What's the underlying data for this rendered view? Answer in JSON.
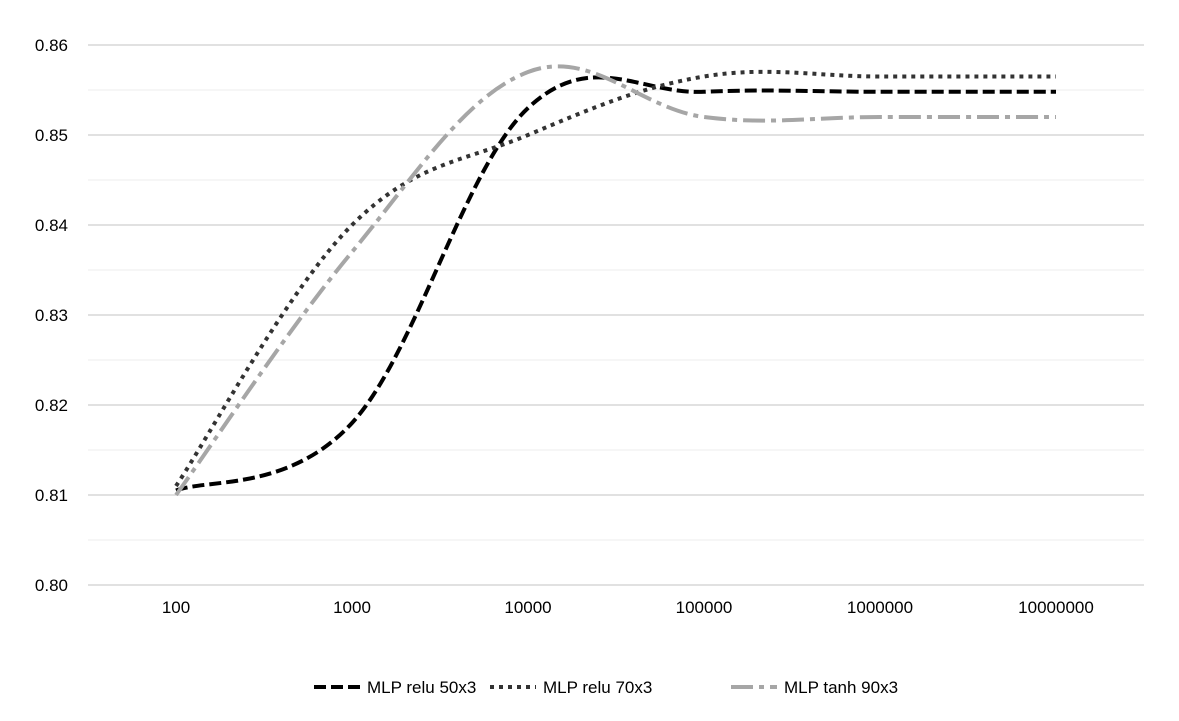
{
  "chart_data": {
    "type": "line",
    "title": "",
    "xlabel": "",
    "ylabel": "",
    "x_scale": "log",
    "categories": [
      "100",
      "1000",
      "10000",
      "100000",
      "1000000",
      "10000000"
    ],
    "x": [
      100,
      1000,
      10000,
      100000,
      1000000,
      10000000
    ],
    "ylim": [
      0.8,
      0.86
    ],
    "y_ticks": [
      "0.80",
      "0.81",
      "0.82",
      "0.83",
      "0.84",
      "0.85",
      "0.86"
    ],
    "y_tick_values": [
      0.8,
      0.81,
      0.82,
      0.83,
      0.84,
      0.85,
      0.86
    ],
    "grid": {
      "major": true,
      "minor": true
    },
    "legend_position": "bottom",
    "series": [
      {
        "name": "MLP relu 50x3",
        "values": [
          0.8105,
          0.818,
          0.853,
          0.8548,
          0.8548,
          0.8548
        ],
        "color": "#000000",
        "dash": "dashed"
      },
      {
        "name": "MLP relu 70x3",
        "values": [
          0.811,
          0.84,
          0.85,
          0.8565,
          0.8565,
          0.8565
        ],
        "color": "#333333",
        "dash": "dotted"
      },
      {
        "name": "MLP tanh 90x3",
        "values": [
          0.81,
          0.837,
          0.857,
          0.852,
          0.852,
          0.852
        ],
        "color": "#a6a6a6",
        "dash": "dash-dot"
      }
    ]
  }
}
